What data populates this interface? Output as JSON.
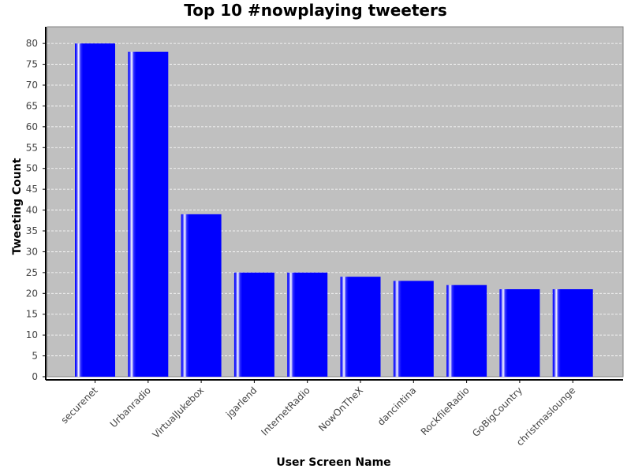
{
  "chart_data": {
    "type": "bar",
    "title": "Top 10 #nowplaying tweeters",
    "xlabel": "User Screen Name",
    "ylabel": "Tweeting Count",
    "categories": [
      "securenet",
      "Urbanradio",
      "VirtualJukebox",
      "jgarlend",
      "InternetRadio",
      "NowOnTheX",
      "dancintina",
      "RockfileRadio",
      "GoBigCountry",
      "christmaslounge"
    ],
    "values": [
      80,
      78,
      39,
      25,
      25,
      24,
      23,
      22,
      21,
      21
    ],
    "ylim": [
      0,
      84
    ],
    "yticks": [
      0,
      5,
      10,
      15,
      20,
      25,
      30,
      35,
      40,
      45,
      50,
      55,
      60,
      65,
      70,
      75,
      80
    ],
    "grid": true,
    "legend": "none"
  },
  "colors": {
    "plot_background": "#c0c0c0",
    "bar_fill": "#0000ff",
    "bar_highlight": "#ffffff",
    "grid_line": "#ffffff",
    "axis": "#000000",
    "tick_text": "#444444"
  }
}
